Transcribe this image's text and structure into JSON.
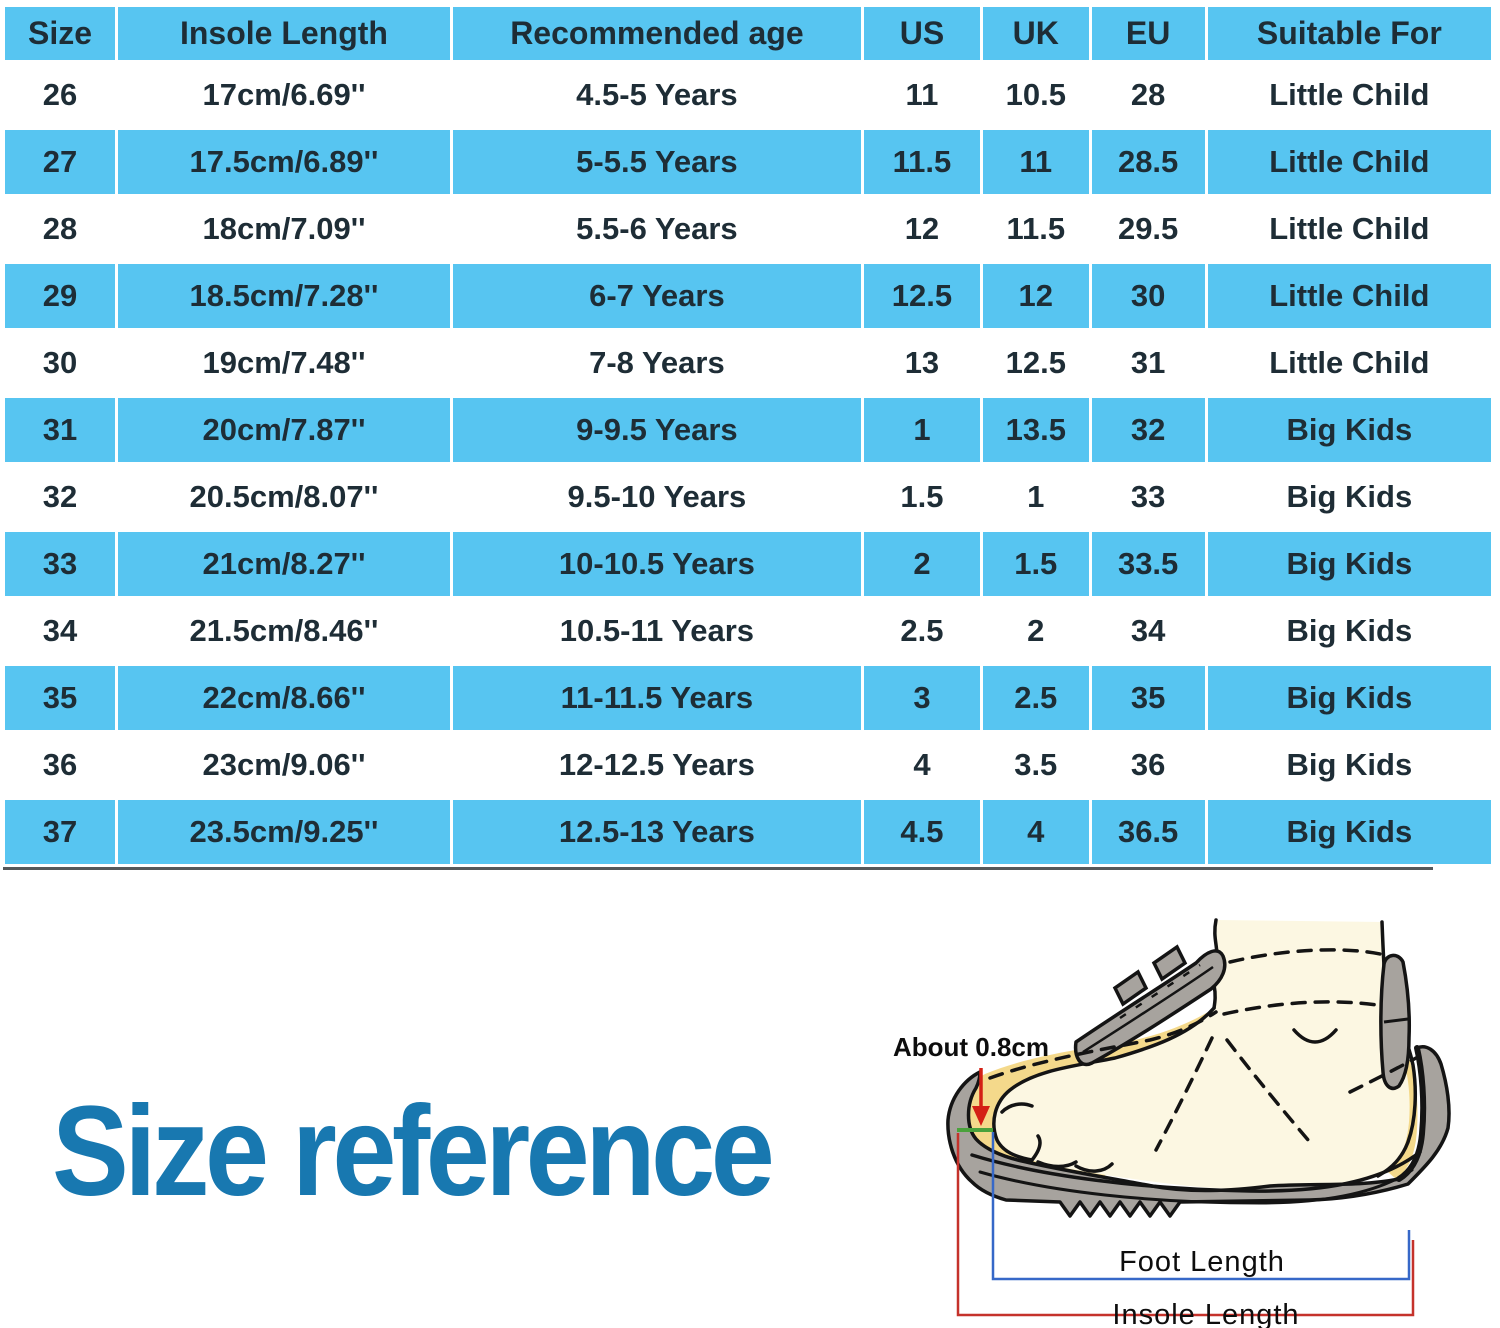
{
  "table": {
    "headers": [
      "Size",
      "Insole Length",
      "Recommended age",
      "US",
      "UK",
      "EU",
      "Suitable For"
    ],
    "rows": [
      [
        "26",
        "17cm/6.69''",
        "4.5-5 Years",
        "11",
        "10.5",
        "28",
        "Little Child"
      ],
      [
        "27",
        "17.5cm/6.89''",
        "5-5.5 Years",
        "11.5",
        "11",
        "28.5",
        "Little Child"
      ],
      [
        "28",
        "18cm/7.09''",
        "5.5-6 Years",
        "12",
        "11.5",
        "29.5",
        "Little Child"
      ],
      [
        "29",
        "18.5cm/7.28''",
        "6-7 Years",
        "12.5",
        "12",
        "30",
        "Little Child"
      ],
      [
        "30",
        "19cm/7.48''",
        "7-8 Years",
        "13",
        "12.5",
        "31",
        "Little Child"
      ],
      [
        "31",
        "20cm/7.87''",
        "9-9.5 Years",
        "1",
        "13.5",
        "32",
        "Big Kids"
      ],
      [
        "32",
        "20.5cm/8.07''",
        "9.5-10 Years",
        "1.5",
        "1",
        "33",
        "Big Kids"
      ],
      [
        "33",
        "21cm/8.27''",
        "10-10.5 Years",
        "2",
        "1.5",
        "33.5",
        "Big Kids"
      ],
      [
        "34",
        "21.5cm/8.46''",
        "10.5-11 Years",
        "2.5",
        "2",
        "34",
        "Big Kids"
      ],
      [
        "35",
        "22cm/8.66''",
        "11-11.5 Years",
        "3",
        "2.5",
        "35",
        "Big Kids"
      ],
      [
        "36",
        "23cm/9.06''",
        "12-12.5 Years",
        "4",
        "3.5",
        "36",
        "Big Kids"
      ],
      [
        "37",
        "23.5cm/9.25''",
        "12.5-13 Years",
        "4.5",
        "4",
        "36.5",
        "Big Kids"
      ]
    ]
  },
  "section_title": "Size reference",
  "diagram_labels": {
    "toe_gap": "About 0.8cm",
    "foot_length": "Foot Length",
    "insole_length": "Insole Length"
  },
  "colors": {
    "row_blue": "#57c5f1",
    "row_white": "#ffffff",
    "table_text": "#1e2d36",
    "title_blue": "#1878b0",
    "measure_red": "#c5322b",
    "measure_blue": "#3668c8",
    "measure_green": "#4aa23c",
    "shoe_grey": "#a7a39e",
    "insole_yellow": "#f4d98b",
    "foot_cream": "#fcf7e2"
  }
}
